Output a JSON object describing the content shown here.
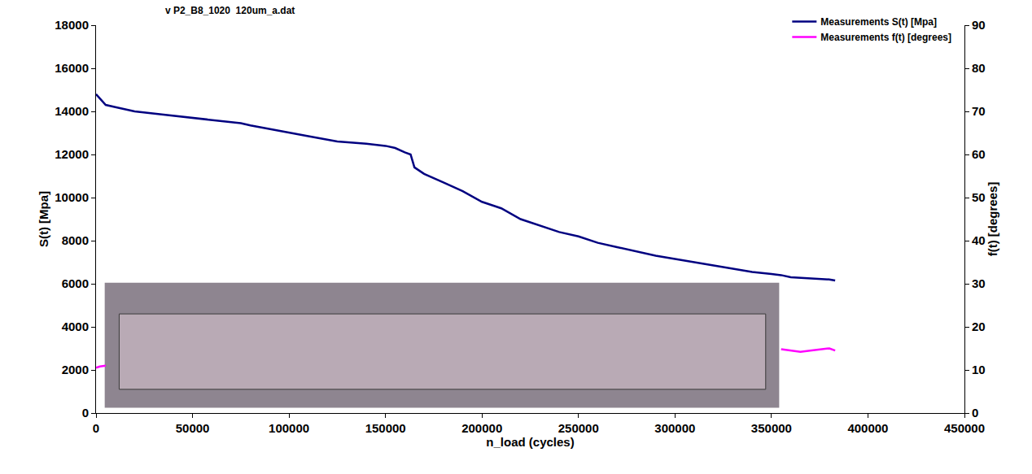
{
  "chart_data": {
    "type": "line",
    "title": "v P2_B8_1020  120um_a.dat",
    "x_label": "n_load (cycles)",
    "y_label": "S(t) [Mpa]",
    "y2_label": "f(t) [degrees]",
    "x": [
      0,
      2000,
      5000,
      10000,
      20000,
      35000,
      50000,
      75000,
      80000,
      100000,
      110000,
      125000,
      140000,
      150000,
      155000,
      160000,
      163000,
      165000,
      170000,
      180000,
      190000,
      200000,
      210000,
      220000,
      230000,
      240000,
      250000,
      260000,
      270000,
      280000,
      290000,
      300000,
      310000,
      320000,
      330000,
      340000,
      350000,
      355000,
      360000,
      365000,
      370000,
      375000,
      380000,
      383000
    ],
    "series": [
      {
        "name": "Measurements S(t) [Mpa]",
        "color": "#000080",
        "values": [
          14800,
          14600,
          14300,
          14200,
          14000,
          13850,
          13700,
          13450,
          13350,
          13000,
          12850,
          12600,
          12500,
          12400,
          12300,
          12100,
          12000,
          11400,
          11100,
          10700,
          10300,
          9800,
          9500,
          9000,
          8700,
          8400,
          8200,
          7900,
          7700,
          7500,
          7300,
          7150,
          7000,
          6850,
          6700,
          6550,
          6450,
          6400,
          6300,
          6280,
          6250,
          6230,
          6200,
          6150
        ]
      },
      {
        "name": "Measurements f(t) [degrees]",
        "color": "#ff00ff",
        "axis": "y2",
        "values": [
          10.5,
          10.8,
          11,
          null,
          null,
          null,
          null,
          null,
          null,
          null,
          null,
          null,
          null,
          null,
          null,
          null,
          null,
          null,
          null,
          null,
          null,
          null,
          null,
          null,
          null,
          null,
          null,
          null,
          null,
          null,
          null,
          null,
          null,
          null,
          null,
          null,
          null,
          14.8,
          14.5,
          14.2,
          14.5,
          14.8,
          15,
          14.5
        ]
      }
    ],
    "xlim": [
      0,
      450000
    ],
    "xticks": [
      0,
      50000,
      100000,
      150000,
      200000,
      250000,
      300000,
      350000,
      400000,
      450000
    ],
    "ylim": [
      0,
      18000
    ],
    "yticks": [
      0,
      2000,
      4000,
      6000,
      8000,
      10000,
      12000,
      14000,
      16000,
      18000
    ],
    "y2lim": [
      0,
      90
    ],
    "y2ticks": [
      0,
      10,
      20,
      30,
      40,
      50,
      60,
      70,
      80,
      90
    ],
    "grid": false,
    "legend": "top-right"
  }
}
